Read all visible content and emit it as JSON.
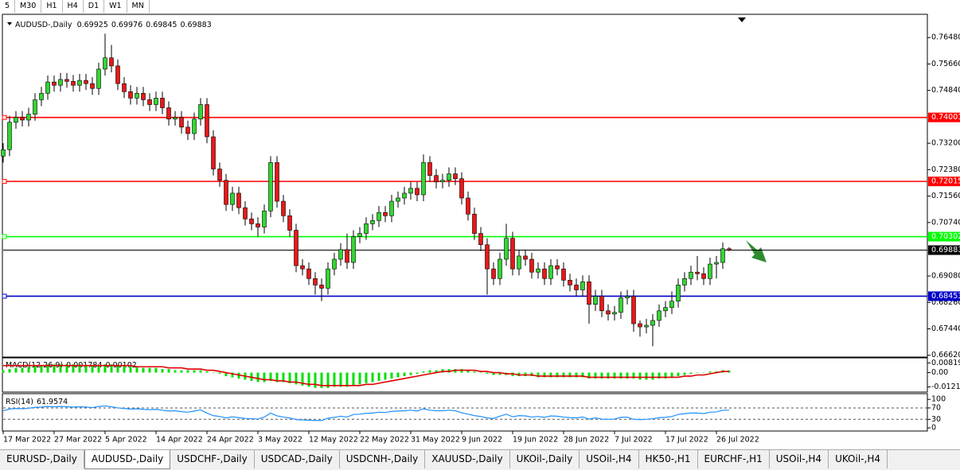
{
  "chart_data": {
    "type": "candlestick",
    "title": "AUDUSD-,Daily",
    "up_color": "#33d633",
    "down_color": "#e81818",
    "categories": [
      "17 Mar 2022",
      null,
      null,
      null,
      null,
      null,
      null,
      null,
      "27 Mar 2022",
      null,
      null,
      null,
      null,
      null,
      null,
      null,
      "5 Apr 2022",
      null,
      null,
      null,
      null,
      null,
      null,
      null,
      "14 Apr 2022",
      null,
      null,
      null,
      null,
      null,
      null,
      null,
      "24 Apr 2022",
      null,
      null,
      null,
      null,
      null,
      null,
      null,
      "3 May 2022",
      null,
      null,
      null,
      null,
      null,
      null,
      null,
      "12 May 2022",
      null,
      null,
      null,
      null,
      null,
      null,
      null,
      "22 May 2022",
      null,
      null,
      null,
      null,
      null,
      null,
      null,
      "31 May 2022",
      null,
      null,
      null,
      null,
      null,
      null,
      null,
      "9 Jun 2022",
      null,
      null,
      null,
      null,
      null,
      null,
      null,
      "19 Jun 2022",
      null,
      null,
      null,
      null,
      null,
      null,
      null,
      "28 Jun 2022",
      null,
      null,
      null,
      null,
      null,
      null,
      null,
      "7 Jul 2022",
      null,
      null,
      null,
      null,
      null,
      null,
      null,
      "17 Jul 2022",
      null,
      null,
      null,
      null,
      null,
      null,
      null,
      "26 Jul 2022",
      null,
      null
    ],
    "open": [
      0.728,
      0.73,
      0.7385,
      0.74,
      0.7392,
      0.741,
      0.7455,
      0.7475,
      0.751,
      0.75,
      0.7518,
      0.7512,
      0.75,
      0.7515,
      0.7505,
      0.749,
      0.755,
      0.7585,
      0.756,
      0.7505,
      0.748,
      0.746,
      0.7475,
      0.7455,
      0.744,
      0.746,
      0.743,
      0.7395,
      0.74,
      0.737,
      0.735,
      0.7395,
      0.744,
      0.734,
      0.724,
      0.7205,
      0.713,
      0.7165,
      0.712,
      0.7085,
      0.707,
      0.706,
      0.711,
      0.726,
      0.714,
      0.7095,
      0.705,
      0.694,
      0.693,
      0.69,
      0.688,
      0.687,
      0.693,
      0.696,
      0.699,
      0.695,
      0.703,
      0.704,
      0.707,
      0.708,
      0.7105,
      0.7095,
      0.714,
      0.715,
      0.7165,
      0.718,
      0.716,
      0.726,
      0.722,
      0.72,
      0.7205,
      0.7225,
      0.721,
      0.715,
      0.71,
      0.704,
      0.7005,
      0.693,
      0.69,
      0.696,
      0.7025,
      0.693,
      0.697,
      0.696,
      0.692,
      0.693,
      0.69,
      0.694,
      0.693,
      0.6895,
      0.688,
      0.6865,
      0.689,
      0.682,
      0.6845,
      0.68,
      0.679,
      0.6795,
      0.684,
      0.6845,
      0.676,
      0.675,
      0.6755,
      0.677,
      0.68,
      0.681,
      0.683,
      0.688,
      0.69,
      0.692,
      0.6915,
      0.69,
      0.6945,
      0.695,
      0.69925
    ],
    "high": [
      0.732,
      0.7405,
      0.742,
      0.742,
      0.743,
      0.7475,
      0.7495,
      0.753,
      0.753,
      0.7538,
      0.7538,
      0.7532,
      0.7535,
      0.7535,
      0.7525,
      0.757,
      0.766,
      0.7625,
      0.758,
      0.7525,
      0.75,
      0.7495,
      0.7495,
      0.7475,
      0.748,
      0.748,
      0.745,
      0.742,
      0.742,
      0.739,
      0.7415,
      0.746,
      0.746,
      0.736,
      0.726,
      0.7225,
      0.7185,
      0.7185,
      0.714,
      0.7105,
      0.709,
      0.713,
      0.728,
      0.728,
      0.716,
      0.7115,
      0.707,
      0.696,
      0.695,
      0.692,
      0.69,
      0.695,
      0.698,
      0.701,
      0.704,
      0.705,
      0.706,
      0.709,
      0.71,
      0.7125,
      0.7125,
      0.716,
      0.717,
      0.7185,
      0.72,
      0.72,
      0.7285,
      0.728,
      0.724,
      0.7225,
      0.7245,
      0.7245,
      0.723,
      0.717,
      0.712,
      0.706,
      0.7025,
      0.695,
      0.698,
      0.707,
      0.7045,
      0.699,
      0.699,
      0.698,
      0.695,
      0.695,
      0.696,
      0.696,
      0.695,
      0.6915,
      0.69,
      0.691,
      0.691,
      0.6865,
      0.6865,
      0.682,
      0.6815,
      0.686,
      0.6865,
      0.6865,
      0.677,
      0.6775,
      0.679,
      0.682,
      0.683,
      0.686,
      0.69,
      0.692,
      0.694,
      0.697,
      0.6935,
      0.6965,
      0.697,
      0.7012,
      0.69976
    ],
    "low": [
      0.726,
      0.728,
      0.7365,
      0.7372,
      0.7372,
      0.739,
      0.7435,
      0.7455,
      0.748,
      0.748,
      0.7492,
      0.748,
      0.748,
      0.7485,
      0.747,
      0.747,
      0.753,
      0.754,
      0.7485,
      0.746,
      0.744,
      0.744,
      0.7435,
      0.742,
      0.742,
      0.741,
      0.7375,
      0.7375,
      0.735,
      0.733,
      0.733,
      0.7375,
      0.732,
      0.722,
      0.7185,
      0.711,
      0.711,
      0.71,
      0.7065,
      0.705,
      0.703,
      0.704,
      0.709,
      0.712,
      0.7075,
      0.703,
      0.692,
      0.691,
      0.688,
      0.685,
      0.683,
      0.685,
      0.691,
      0.694,
      0.693,
      0.693,
      0.701,
      0.702,
      0.705,
      0.706,
      0.7075,
      0.7075,
      0.712,
      0.713,
      0.7145,
      0.714,
      0.714,
      0.72,
      0.718,
      0.718,
      0.7185,
      0.719,
      0.713,
      0.708,
      0.702,
      0.6985,
      0.685,
      0.688,
      0.688,
      0.694,
      0.691,
      0.691,
      0.694,
      0.69,
      0.69,
      0.688,
      0.688,
      0.691,
      0.6875,
      0.686,
      0.6845,
      0.6845,
      0.676,
      0.68,
      0.678,
      0.677,
      0.677,
      0.6775,
      0.682,
      0.6735,
      0.672,
      0.673,
      0.669,
      0.675,
      0.678,
      0.679,
      0.681,
      0.686,
      0.688,
      0.6895,
      0.688,
      0.688,
      0.69,
      0.693,
      0.69845
    ],
    "close": [
      0.73,
      0.7385,
      0.74,
      0.7392,
      0.741,
      0.7455,
      0.7475,
      0.751,
      0.75,
      0.7518,
      0.7512,
      0.75,
      0.7515,
      0.7505,
      0.749,
      0.755,
      0.7585,
      0.756,
      0.7505,
      0.748,
      0.746,
      0.7475,
      0.7455,
      0.744,
      0.746,
      0.743,
      0.7395,
      0.74,
      0.737,
      0.735,
      0.7395,
      0.744,
      0.734,
      0.724,
      0.7205,
      0.713,
      0.7165,
      0.712,
      0.7085,
      0.707,
      0.706,
      0.711,
      0.726,
      0.714,
      0.7095,
      0.705,
      0.694,
      0.693,
      0.69,
      0.688,
      0.687,
      0.693,
      0.696,
      0.699,
      0.695,
      0.703,
      0.704,
      0.707,
      0.708,
      0.7105,
      0.7095,
      0.714,
      0.715,
      0.7165,
      0.718,
      0.716,
      0.726,
      0.722,
      0.72,
      0.7205,
      0.7225,
      0.721,
      0.715,
      0.71,
      0.704,
      0.7005,
      0.693,
      0.69,
      0.696,
      0.7025,
      0.693,
      0.697,
      0.696,
      0.692,
      0.693,
      0.69,
      0.694,
      0.693,
      0.6895,
      0.688,
      0.6865,
      0.689,
      0.682,
      0.6845,
      0.68,
      0.679,
      0.6795,
      0.684,
      0.6845,
      0.676,
      0.675,
      0.6755,
      0.677,
      0.68,
      0.681,
      0.683,
      0.688,
      0.69,
      0.692,
      0.6915,
      0.69,
      0.6945,
      0.695,
      0.69925,
      0.69883
    ],
    "ylim": [
      0.66564,
      0.77201
    ],
    "yticks": [
      {
        "value": 0.7648,
        "label": "0.76480"
      },
      {
        "value": 0.7566,
        "label": "0.75660"
      },
      {
        "value": 0.7484,
        "label": "0.74840"
      },
      {
        "value": 0.732,
        "label": "0.73200"
      },
      {
        "value": 0.7238,
        "label": "0.72380"
      },
      {
        "value": 0.7156,
        "label": "0.71560"
      },
      {
        "value": 0.7074,
        "label": "0.70740"
      },
      {
        "value": 0.6908,
        "label": "0.69080"
      },
      {
        "value": 0.6826,
        "label": "0.68260"
      },
      {
        "value": 0.6744,
        "label": "0.67440"
      },
      {
        "value": 0.6662,
        "label": "0.66620"
      }
    ],
    "hlines": [
      {
        "value": 0.74001,
        "color": "#ff0000"
      },
      {
        "value": 0.72015,
        "color": "#ff0000"
      },
      {
        "value": 0.70302,
        "color": "#00ff00"
      },
      {
        "value": 0.68453,
        "color": "#0000c8"
      }
    ],
    "bid_color": "#000000",
    "macd": {
      "name": "MACD(12,26,9)",
      "color": "#00e000",
      "signal_color": "#e00000",
      "ylim": [
        -0.0165,
        0.0125
      ],
      "yticks": [
        0.008197,
        {
          "value": 0,
          "label": "0.00"
        },
        -0.01212
      ],
      "values": [
        0.002,
        0.003,
        0.004,
        0.004,
        0.005,
        0.006,
        0.006,
        0.007,
        0.007,
        0.007,
        0.007,
        0.007,
        0.007,
        0.006,
        0.006,
        0.006,
        0.007,
        0.007,
        0.006,
        0.006,
        0.005,
        0.005,
        0.004,
        0.004,
        0.004,
        0.003,
        0.003,
        0.002,
        0.002,
        0.002,
        0.002,
        0.002,
        0.001,
        0.0,
        -0.001,
        -0.003,
        -0.004,
        -0.005,
        -0.006,
        -0.007,
        -0.008,
        -0.008,
        -0.007,
        -0.008,
        -0.008,
        -0.009,
        -0.01,
        -0.011,
        -0.012,
        -0.013,
        -0.013,
        -0.013,
        -0.012,
        -0.012,
        -0.012,
        -0.011,
        -0.01,
        -0.009,
        -0.008,
        -0.007,
        -0.006,
        -0.005,
        -0.004,
        -0.003,
        -0.002,
        -0.001,
        0.001,
        0.002,
        0.002,
        0.003,
        0.003,
        0.003,
        0.003,
        0.002,
        0.001,
        0.0,
        -0.001,
        -0.002,
        -0.002,
        -0.002,
        -0.003,
        -0.003,
        -0.003,
        -0.003,
        -0.004,
        -0.004,
        -0.004,
        -0.004,
        -0.004,
        -0.004,
        -0.004,
        -0.004,
        -0.005,
        -0.005,
        -0.005,
        -0.005,
        -0.005,
        -0.005,
        -0.005,
        -0.005,
        -0.006,
        -0.006,
        -0.006,
        -0.005,
        -0.005,
        -0.004,
        -0.003,
        -0.002,
        -0.001,
        0.0,
        0.0,
        0.001,
        0.001,
        0.002,
        0.001784
      ],
      "signal": [
        0.006,
        0.006,
        0.006,
        0.006,
        0.006,
        0.006,
        0.006,
        0.006,
        0.006,
        0.006,
        0.006,
        0.006,
        0.006,
        0.006,
        0.006,
        0.006,
        0.006,
        0.006,
        0.006,
        0.006,
        0.006,
        0.005,
        0.005,
        0.005,
        0.005,
        0.005,
        0.004,
        0.004,
        0.004,
        0.003,
        0.003,
        0.003,
        0.002,
        0.002,
        0.001,
        0.0,
        -0.001,
        -0.002,
        -0.003,
        -0.004,
        -0.005,
        -0.006,
        -0.006,
        -0.007,
        -0.007,
        -0.008,
        -0.008,
        -0.009,
        -0.01,
        -0.01,
        -0.011,
        -0.011,
        -0.011,
        -0.011,
        -0.011,
        -0.011,
        -0.011,
        -0.01,
        -0.01,
        -0.009,
        -0.008,
        -0.007,
        -0.006,
        -0.005,
        -0.004,
        -0.003,
        -0.002,
        -0.001,
        0.0,
        0.001,
        0.001,
        0.002,
        0.002,
        0.002,
        0.002,
        0.001,
        0.001,
        0.0,
        0.0,
        -0.001,
        -0.001,
        -0.002,
        -0.002,
        -0.002,
        -0.003,
        -0.003,
        -0.003,
        -0.003,
        -0.003,
        -0.003,
        -0.003,
        -0.003,
        -0.004,
        -0.004,
        -0.004,
        -0.004,
        -0.004,
        -0.004,
        -0.004,
        -0.004,
        -0.004,
        -0.004,
        -0.004,
        -0.004,
        -0.004,
        -0.004,
        -0.004,
        -0.003,
        -0.003,
        -0.002,
        -0.002,
        -0.001,
        0.0,
        0.001,
        0.00102
      ]
    },
    "rsi": {
      "name": "RSI(14)",
      "color": "#1e90ff",
      "ylim": [
        -11,
        120
      ],
      "yticks": [
        100,
        70,
        30,
        0
      ],
      "levels": [
        70,
        30
      ],
      "values": [
        60,
        66,
        68,
        67,
        69,
        72,
        73,
        75,
        74,
        75,
        74,
        73,
        74,
        73,
        71,
        75,
        77,
        74,
        70,
        68,
        66,
        67,
        65,
        64,
        65,
        62,
        59,
        60,
        57,
        55,
        59,
        63,
        52,
        43,
        40,
        35,
        39,
        36,
        33,
        32,
        31,
        38,
        52,
        42,
        38,
        35,
        29,
        28,
        27,
        26,
        26,
        34,
        37,
        41,
        38,
        47,
        48,
        51,
        52,
        55,
        54,
        58,
        59,
        60,
        62,
        59,
        67,
        62,
        60,
        60,
        62,
        60,
        53,
        48,
        43,
        40,
        35,
        33,
        41,
        48,
        39,
        43,
        42,
        38,
        40,
        37,
        42,
        41,
        38,
        36,
        35,
        38,
        31,
        35,
        31,
        30,
        31,
        37,
        38,
        30,
        29,
        30,
        32,
        36,
        37,
        40,
        47,
        50,
        52,
        52,
        50,
        55,
        56,
        62,
        61.9574
      ]
    }
  },
  "toolbar": {
    "timeframes": [
      "5",
      "M30",
      "H1",
      "H4",
      "D1",
      "W1",
      "MN"
    ]
  },
  "tabs": {
    "active": 1,
    "items": [
      "EURUSD-,Daily",
      "AUDUSD-,Daily",
      "USDCHF-,Daily",
      "USDCAD-,Daily",
      "USDCNH-,Daily",
      "XAUUSD-,Daily",
      "UKOil-,Daily",
      "USOil-,H4",
      "HK50-,H1",
      "EURCHF-,H1",
      "USOil-,H4",
      "UKOil-,H4"
    ]
  }
}
